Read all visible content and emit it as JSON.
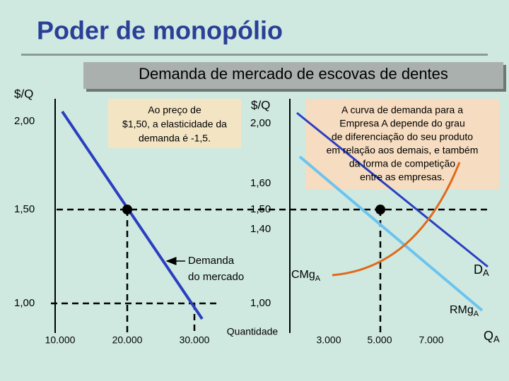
{
  "title": "Poder de monopólio",
  "subtitle": "Demanda de mercado de escovas de dentes",
  "left_panel": {
    "y_label": "$/Q",
    "y_labels": [
      "2,00",
      "1,50",
      "1,00"
    ],
    "x_labels": [
      "10.000",
      "20.000",
      "30.000"
    ],
    "note_lines": [
      "Ao preço de",
      "$1,50, a elasticidade da",
      "demanda é -1,5."
    ],
    "curve_label_lines": [
      "Demanda",
      "do mercado"
    ]
  },
  "right_panel": {
    "y_label": "$/Q",
    "y_labels": [
      "2,00",
      "1,60",
      "1,50",
      "1,40",
      "1,00"
    ],
    "x_axis_label": "Quantidade",
    "x_labels": [
      "3.000",
      "5.000",
      "7.000"
    ],
    "x_symbol": {
      "symbol": "Q",
      "subscript": "A"
    },
    "note_lines": [
      "A curva de demanda para a",
      "Empresa A depende do grau",
      "de diferenciação do seu produto",
      "em relação aos demais, e também",
      "da forma de competição",
      "entre as empresas."
    ],
    "curves": [
      {
        "symbol": "D",
        "subscript": "A"
      },
      {
        "symbol": "CMg",
        "subscript": "A"
      },
      {
        "symbol": "RMg",
        "subscript": "A"
      }
    ]
  }
}
